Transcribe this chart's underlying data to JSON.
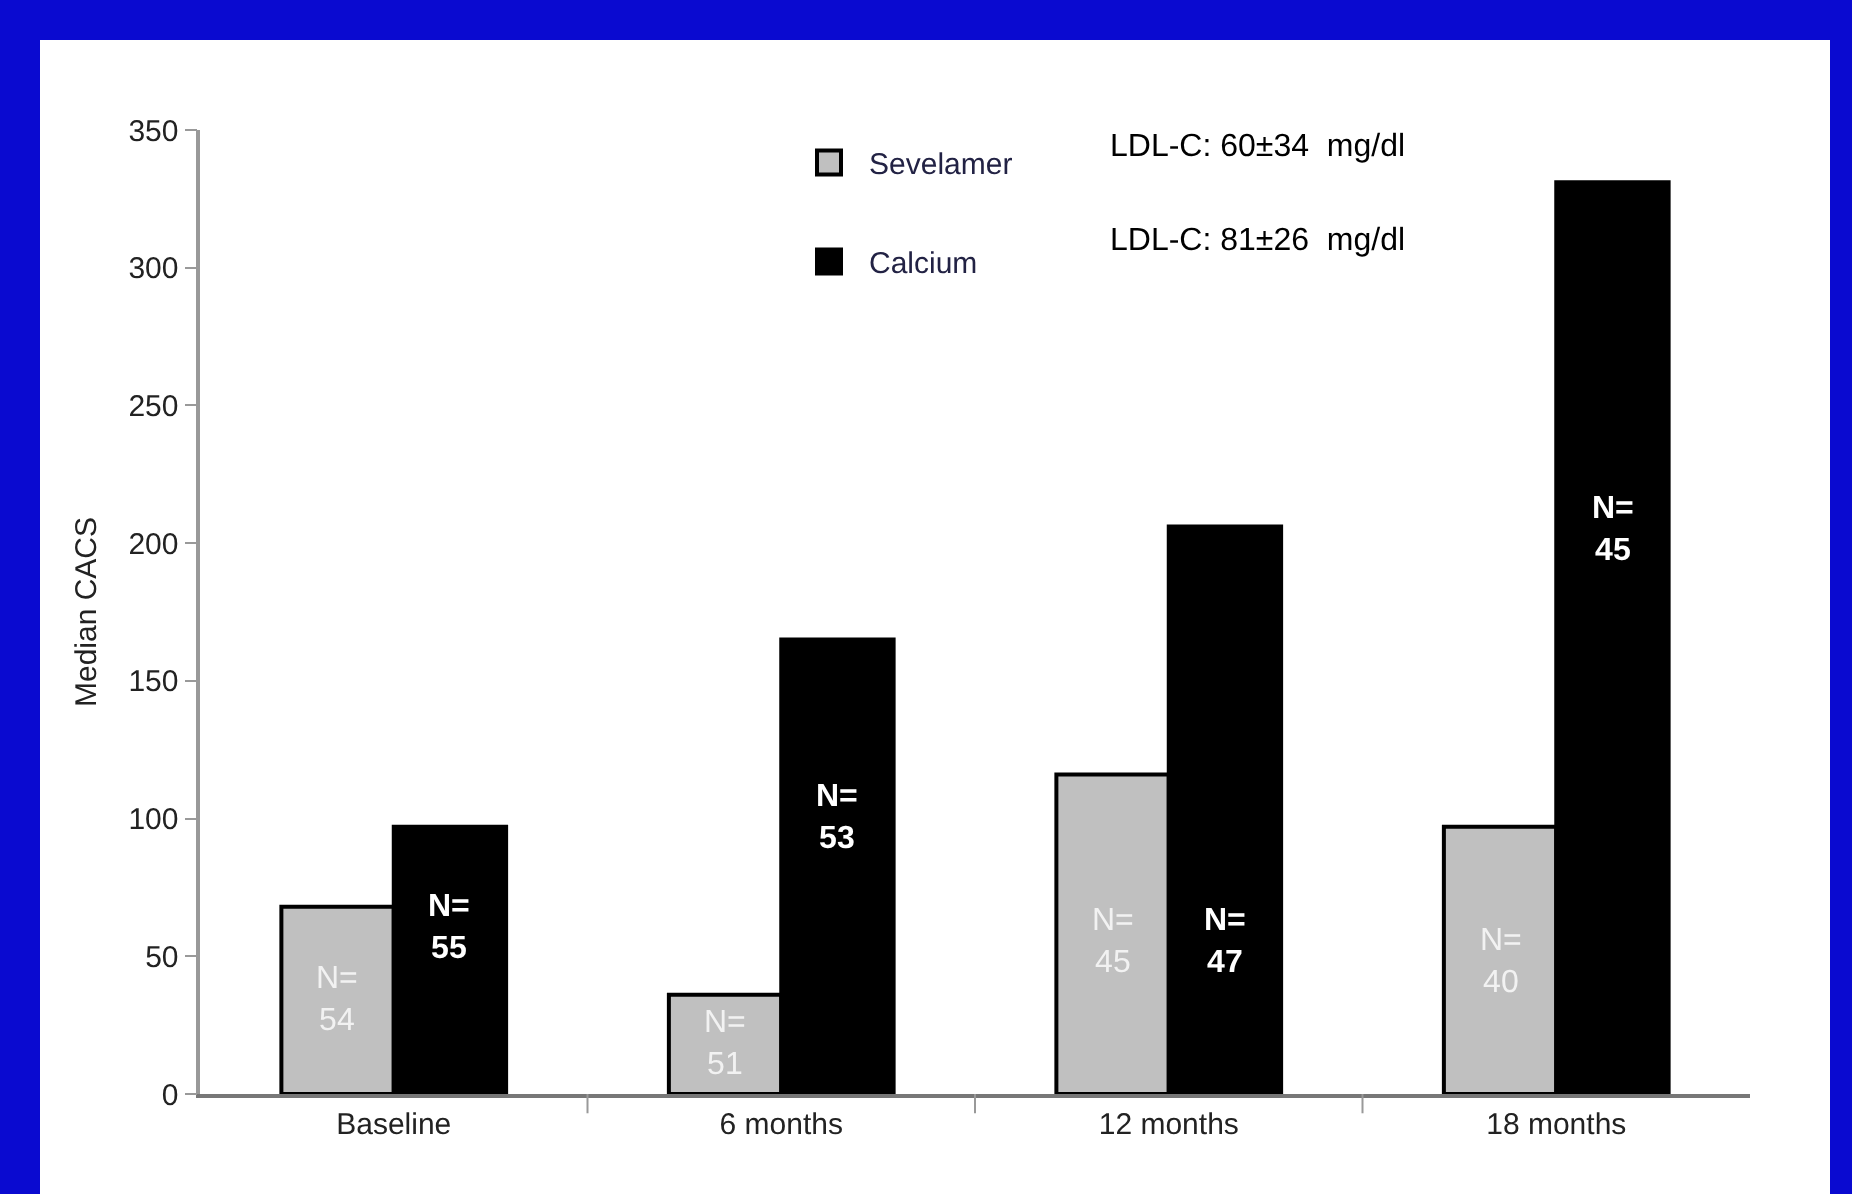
{
  "chart_data": {
    "type": "bar",
    "ylabel": "Median CACS",
    "categories": [
      "Baseline",
      "6 months",
      "12 months",
      "18 months"
    ],
    "series": [
      {
        "name": "Sevelamer",
        "color": "#c0c0c0",
        "values": [
          68,
          36,
          116,
          97
        ]
      },
      {
        "name": "Calcium",
        "color": "#000000",
        "values": [
          97,
          165,
          206,
          331
        ]
      }
    ],
    "annotations": [
      "LDL-C: 60±34  mg/dl",
      "LDL-C: 81±26  mg/dl",
      {
        "text": "N=\n54",
        "x": "Baseline",
        "y": 34
      },
      {
        "text": "N=\n55",
        "x": "Baseline",
        "y": 60
      },
      {
        "text": "N=\n51",
        "x": "6 months",
        "y": 18
      },
      {
        "text": "N=\n53",
        "x": "6 months",
        "y": 100
      },
      {
        "text": "N=\n45",
        "x": "12 months",
        "y": 55
      },
      {
        "text": "N=\n47",
        "x": "12 months",
        "y": 55
      },
      {
        "text": "N=\n40",
        "x": "18 months",
        "y": 48
      },
      {
        "text": "N=\n45",
        "x": "18 months",
        "y": 205
      }
    ],
    "ylim": [
      0,
      350
    ],
    "yticks": [
      0,
      50,
      100,
      150,
      200,
      250,
      300,
      350
    ],
    "grid": false,
    "legend": "top"
  }
}
